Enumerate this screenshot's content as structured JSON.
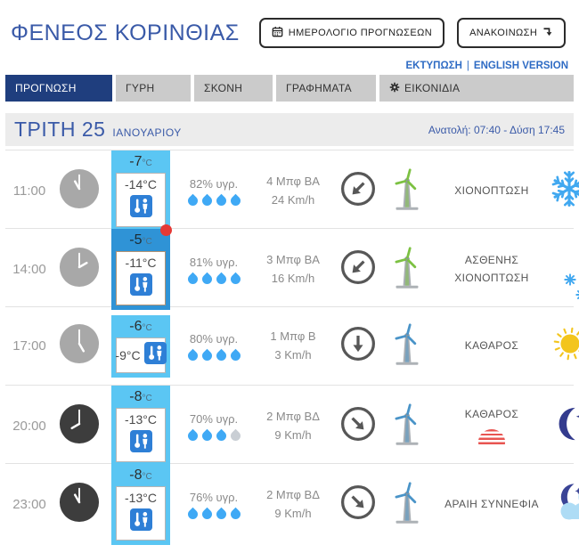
{
  "header": {
    "title": "ΦΕΝΕΟΣ ΚΟΡΙΝΘΙΑΣ",
    "calendar_button": "ΗΜΕΡΟΛΟΓΙΟ ΠΡΟΓΝΩΣΕΩΝ",
    "announcement_button": "ΑΝΑΚΟΙΝΩΣΗ"
  },
  "links": {
    "print": "ΕΚΤΥΠΩΣΗ",
    "separator": "|",
    "english": "ENGLISH VERSION"
  },
  "tabs": [
    {
      "label": "ΠΡΟΓΝΩΣΗ",
      "active": true
    },
    {
      "label": "ΓΥΡΗ",
      "active": false
    },
    {
      "label": "ΣΚΟΝΗ",
      "active": false
    },
    {
      "label": "ΓΡΑΦΗΜΑΤΑ",
      "active": false
    },
    {
      "label": "ΕΙΚΟΝΙΔΙΑ",
      "active": false,
      "icon": "gear-icon"
    }
  ],
  "date_bar": {
    "day": "ΤΡΙΤΗ 25",
    "month": "ΙΑΝΟΥΑΡΙΟΥ",
    "sun_times": "Ανατολή: 07:40  - Δύση 17:45"
  },
  "colors": {
    "navy_tab": "#1F3E7E",
    "title_blue": "#3A5AA8",
    "link_blue": "#2E6BC4",
    "box_light_blue": "#5BC6F3",
    "box_active_blue": "#2F93D6",
    "current_dot_red": "#E53935",
    "drop_blue": "#3FA9F5",
    "snow_blue": "#41A8F0",
    "sun_yellow": "#F3C51D",
    "moon_navy": "#333B8E",
    "cloud_blue": "#AEDCF5",
    "turbine_green": "#7CC142",
    "turbine_blue": "#4A94C8",
    "frost_red": "#E85450"
  },
  "rows": [
    {
      "time": "11:00",
      "clock": "day",
      "temp": "-7",
      "unit": "°C",
      "feels": "-14°C",
      "box_style": "light",
      "current": false,
      "compact": false,
      "humidity": "82% υγρ.",
      "drops": [
        "b",
        "b",
        "b",
        "b"
      ],
      "wind_bft": "4 Μπφ ΒΑ",
      "wind_kmh": "24 Km/h",
      "arrow": "SW",
      "turbine": "green",
      "condition": "ΧΙΟΝΟΠΤΩΣΗ",
      "condition_badge": null,
      "icon": "snow"
    },
    {
      "time": "14:00",
      "clock": "day",
      "temp": "-5",
      "unit": "°C",
      "feels": "-11°C",
      "box_style": "dark",
      "current": true,
      "compact": false,
      "humidity": "81% υγρ.",
      "drops": [
        "b",
        "b",
        "b",
        "b"
      ],
      "wind_bft": "3 Μπφ ΒΑ",
      "wind_kmh": "16 Km/h",
      "arrow": "SW",
      "turbine": "green",
      "condition": "ΑΣΘΕΝΗΣ ΧΙΟΝΟΠΤΩΣΗ",
      "condition_badge": null,
      "icon": "light-snow"
    },
    {
      "time": "17:00",
      "clock": "day",
      "temp": "-6",
      "unit": "°C",
      "feels": "-9°C",
      "box_style": "light",
      "current": false,
      "compact": true,
      "humidity": "80% υγρ.",
      "drops": [
        "b",
        "b",
        "b",
        "b"
      ],
      "wind_bft": "1 Μπφ Β",
      "wind_kmh": "3 Km/h",
      "arrow": "S",
      "turbine": "blue",
      "condition": "ΚΑΘΑΡΟΣ",
      "condition_badge": null,
      "icon": "sun"
    },
    {
      "time": "20:00",
      "clock": "night",
      "temp": "-8",
      "unit": "°C",
      "feels": "-13°C",
      "box_style": "light",
      "current": false,
      "compact": false,
      "humidity": "70% υγρ.",
      "drops": [
        "b",
        "b",
        "b",
        "g"
      ],
      "wind_bft": "2 Μπφ ΒΔ",
      "wind_kmh": "9 Km/h",
      "arrow": "SE",
      "turbine": "blue",
      "condition": "ΚΑΘΑΡΟΣ",
      "condition_badge": "frost",
      "icon": "moon"
    },
    {
      "time": "23:00",
      "clock": "night",
      "temp": "-8",
      "unit": "°C",
      "feels": "-13°C",
      "box_style": "light",
      "current": false,
      "compact": false,
      "humidity": "76% υγρ.",
      "drops": [
        "b",
        "b",
        "b",
        "b"
      ],
      "wind_bft": "2 Μπφ ΒΔ",
      "wind_kmh": "9 Km/h",
      "arrow": "SE",
      "turbine": "blue",
      "condition": "ΑΡΑΙΗ ΣΥΝΝΕΦΙΑ",
      "condition_badge": null,
      "icon": "moon-cloud"
    }
  ]
}
